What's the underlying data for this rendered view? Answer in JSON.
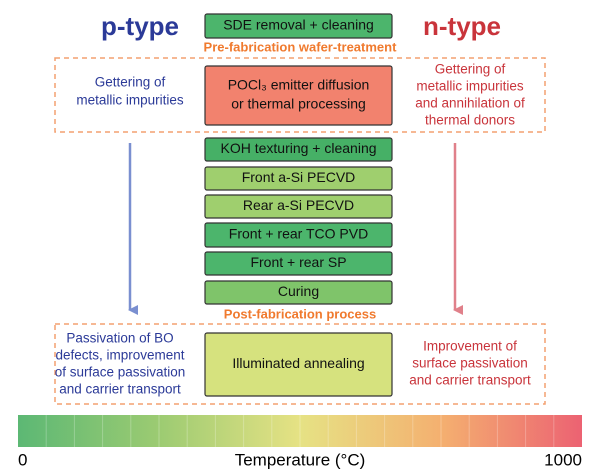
{
  "p_type": "p-type",
  "n_type": "n-type",
  "pre_label": "Pre-fabrication wafer-treatment",
  "post_label": "Post-fabrication process",
  "steps": [
    {
      "lines": [
        "SDE removal + cleaning"
      ]
    },
    {
      "lines": [
        "POCl₃ emitter diffusion",
        "or thermal processing"
      ]
    },
    {
      "lines": [
        "KOH texturing + cleaning"
      ]
    },
    {
      "lines": [
        "Front a-Si PECVD"
      ]
    },
    {
      "lines": [
        "Rear a-Si PECVD"
      ]
    },
    {
      "lines": [
        "Front + rear TCO PVD"
      ]
    },
    {
      "lines": [
        "Front + rear SP"
      ]
    },
    {
      "lines": [
        "Curing"
      ]
    },
    {
      "lines": [
        "Illuminated annealing"
      ]
    }
  ],
  "pre_left": [
    "Gettering of",
    "metallic impurities"
  ],
  "pre_right": [
    "Gettering of",
    "metallic impurities",
    "and annihilation of",
    "thermal donors"
  ],
  "post_left": [
    "Passivation of BO",
    "defects, improvement",
    "of surface passivation",
    "and carrier transport"
  ],
  "post_right": [
    "Improvement of",
    "surface passivation",
    "and carrier transport"
  ],
  "colorbar": {
    "min": "0",
    "label": "Temperature (°C)",
    "max": "1000"
  }
}
